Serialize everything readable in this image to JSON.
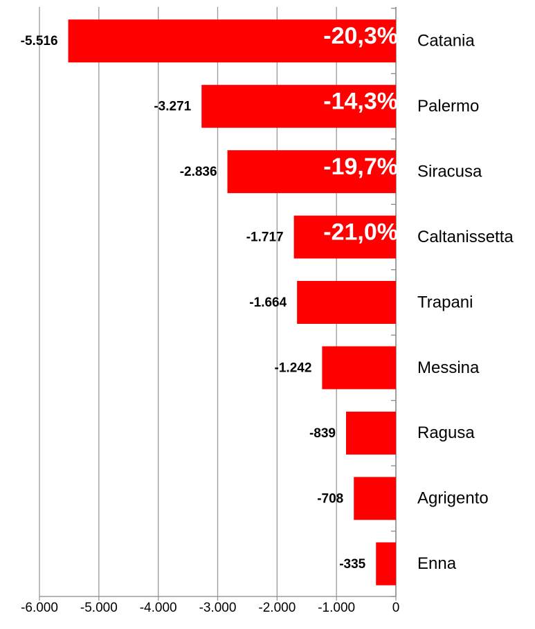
{
  "chart_data": {
    "type": "hbar",
    "categories": [
      "Catania",
      "Palermo",
      "Siracusa",
      "Caltanissetta",
      "Trapani",
      "Messina",
      "Ragusa",
      "Agrigento",
      "Enna"
    ],
    "values": [
      -5516,
      -3271,
      -2836,
      -1717,
      -1664,
      -1242,
      -839,
      -708,
      -335
    ],
    "value_labels": [
      "-5.516",
      "-3.271",
      "-2.836",
      "-1.717",
      "-1.664",
      "-1.242",
      "-839",
      "-708",
      "-335"
    ],
    "percent_labels": [
      "-20,3%",
      "-14,3%",
      "-19,7%",
      "-21,0%",
      null,
      null,
      null,
      null,
      null
    ],
    "color": "#ff0000",
    "xlim": [
      -6000,
      0
    ],
    "xticks": [
      {
        "value": -6000,
        "label": "-6.000"
      },
      {
        "value": -5000,
        "label": "-5.000"
      },
      {
        "value": -4000,
        "label": "-4.000"
      },
      {
        "value": -3000,
        "label": "-3.000"
      },
      {
        "value": -2000,
        "label": "-2.000"
      },
      {
        "value": -1000,
        "label": "-1.000"
      },
      0
    ],
    "grid": true
  }
}
